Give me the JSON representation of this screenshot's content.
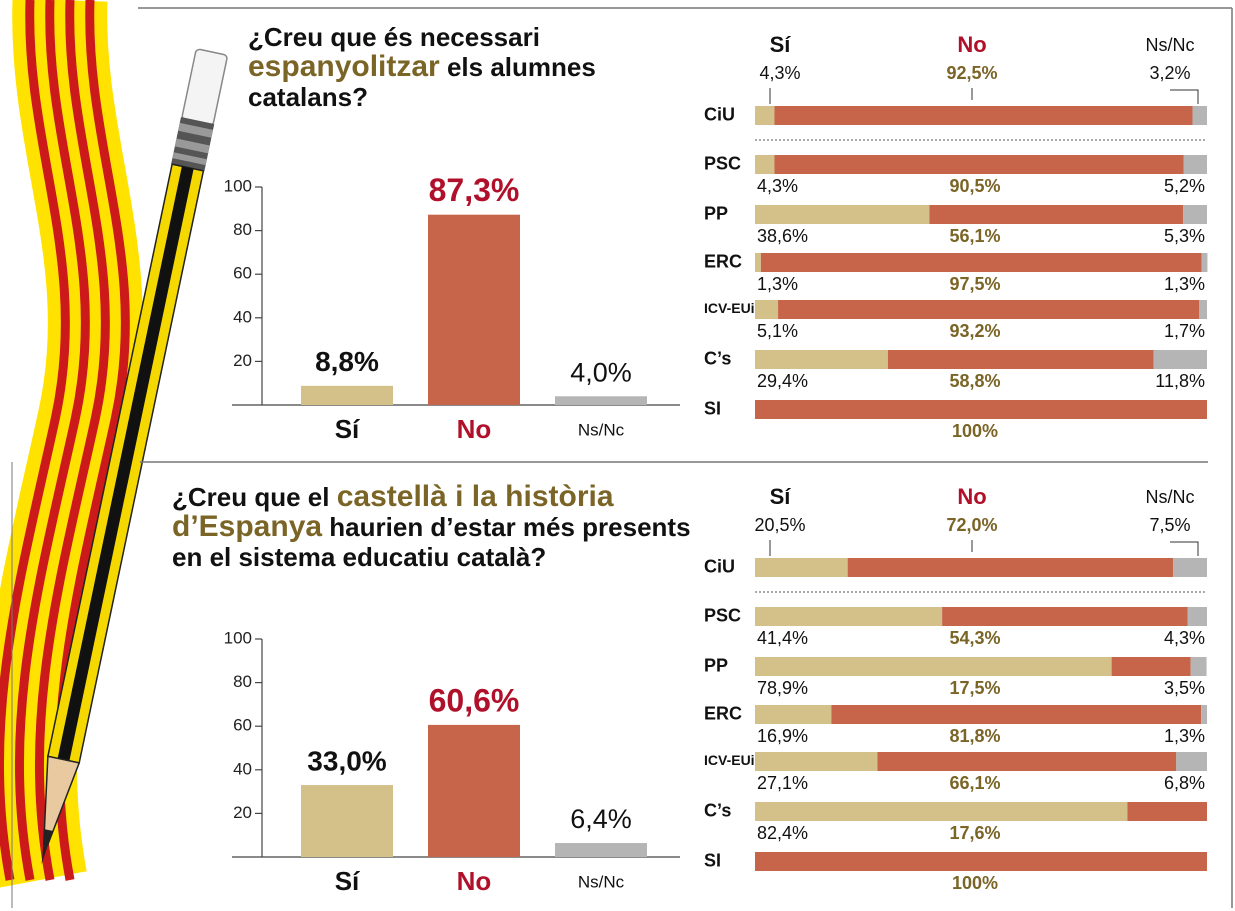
{
  "chart_data": [
    {
      "type": "bar",
      "title_parts": [
        "¿Creu que és necessari",
        "espanyolitzar",
        "els alumnes catalans?"
      ],
      "title_highlight": 1,
      "title_highlight_color": "#7a6426",
      "categories": [
        "Sí",
        "No",
        "Ns/Nc"
      ],
      "values": [
        8.8,
        87.3,
        4.0
      ],
      "value_labels": [
        "8,8%",
        "87,3%",
        "4,0%"
      ],
      "colors": [
        "#d4c18a",
        "#c6654a",
        "#b5b5b5"
      ],
      "label_colors": [
        "#111111",
        "#b0102a",
        "#111111"
      ],
      "ylim": [
        0,
        100
      ],
      "yticks": [
        20,
        40,
        60,
        80,
        100
      ]
    },
    {
      "type": "stacked-bar-horizontal",
      "categories": [
        "CiU",
        "PSC",
        "PP",
        "ERC",
        "ICV-EUiA",
        "C’s",
        "SI"
      ],
      "xlim": [
        0,
        100
      ],
      "series": [
        {
          "name": "Sí",
          "color": "#d4c18a",
          "name_color": "#111111",
          "label_color": "#111111",
          "values": [
            4.3,
            4.3,
            38.6,
            1.3,
            5.1,
            29.4,
            null
          ],
          "value_labels": [
            "4,3%",
            "4,3%",
            "38,6%",
            "1,3%",
            "5,1%",
            "29,4%",
            null
          ]
        },
        {
          "name": "No",
          "color": "#c6654a",
          "name_color": "#b0102a",
          "label_color": "#7a6426",
          "values": [
            92.5,
            90.5,
            56.1,
            97.5,
            93.2,
            58.8,
            100
          ],
          "value_labels": [
            "92,5%",
            "90,5%",
            "56,1%",
            "97,5%",
            "93,2%",
            "58,8%",
            "100%"
          ]
        },
        {
          "name": "Ns/Nc",
          "color": "#b5b5b5",
          "name_color": "#111111",
          "label_color": "#111111",
          "values": [
            3.2,
            5.2,
            5.3,
            1.3,
            1.7,
            11.8,
            null
          ],
          "value_labels": [
            "3,2%",
            "5,2%",
            "5,3%",
            "1,3%",
            "1,7%",
            "11,8%",
            null
          ]
        }
      ]
    },
    {
      "type": "bar",
      "title_parts": [
        "¿Creu que el",
        "castellà i la història d’Espanya",
        "haurien d’estar més presents en el sistema educatiu català?"
      ],
      "title_highlight": 1,
      "title_highlight_color": "#7a6426",
      "categories": [
        "Sí",
        "No",
        "Ns/Nc"
      ],
      "values": [
        33.0,
        60.6,
        6.4
      ],
      "value_labels": [
        "33,0%",
        "60,6%",
        "6,4%"
      ],
      "colors": [
        "#d4c18a",
        "#c6654a",
        "#b5b5b5"
      ],
      "label_colors": [
        "#111111",
        "#b0102a",
        "#111111"
      ],
      "ylim": [
        0,
        100
      ],
      "yticks": [
        20,
        40,
        60,
        80,
        100
      ]
    },
    {
      "type": "stacked-bar-horizontal",
      "categories": [
        "CiU",
        "PSC",
        "PP",
        "ERC",
        "ICV-EUiA",
        "C’s",
        "SI"
      ],
      "xlim": [
        0,
        100
      ],
      "series": [
        {
          "name": "Sí",
          "color": "#d4c18a",
          "name_color": "#111111",
          "label_color": "#111111",
          "values": [
            20.5,
            41.4,
            78.9,
            16.9,
            27.1,
            82.4,
            null
          ],
          "value_labels": [
            "20,5%",
            "41,4%",
            "78,9%",
            "16,9%",
            "27,1%",
            "82,4%",
            null
          ]
        },
        {
          "name": "No",
          "color": "#c6654a",
          "name_color": "#b0102a",
          "label_color": "#7a6426",
          "values": [
            72.0,
            54.3,
            17.5,
            81.8,
            66.1,
            17.6,
            100
          ],
          "value_labels": [
            "72,0%",
            "54,3%",
            "17,5%",
            "81,8%",
            "66,1%",
            "17,6%",
            "100%"
          ]
        },
        {
          "name": "Ns/Nc",
          "color": "#b5b5b5",
          "name_color": "#111111",
          "label_color": "#111111",
          "values": [
            7.5,
            4.3,
            3.5,
            1.3,
            6.8,
            null,
            null
          ],
          "value_labels": [
            "7,5%",
            "4,3%",
            "3,5%",
            "1,3%",
            "6,8%",
            null,
            null
          ]
        }
      ]
    }
  ]
}
